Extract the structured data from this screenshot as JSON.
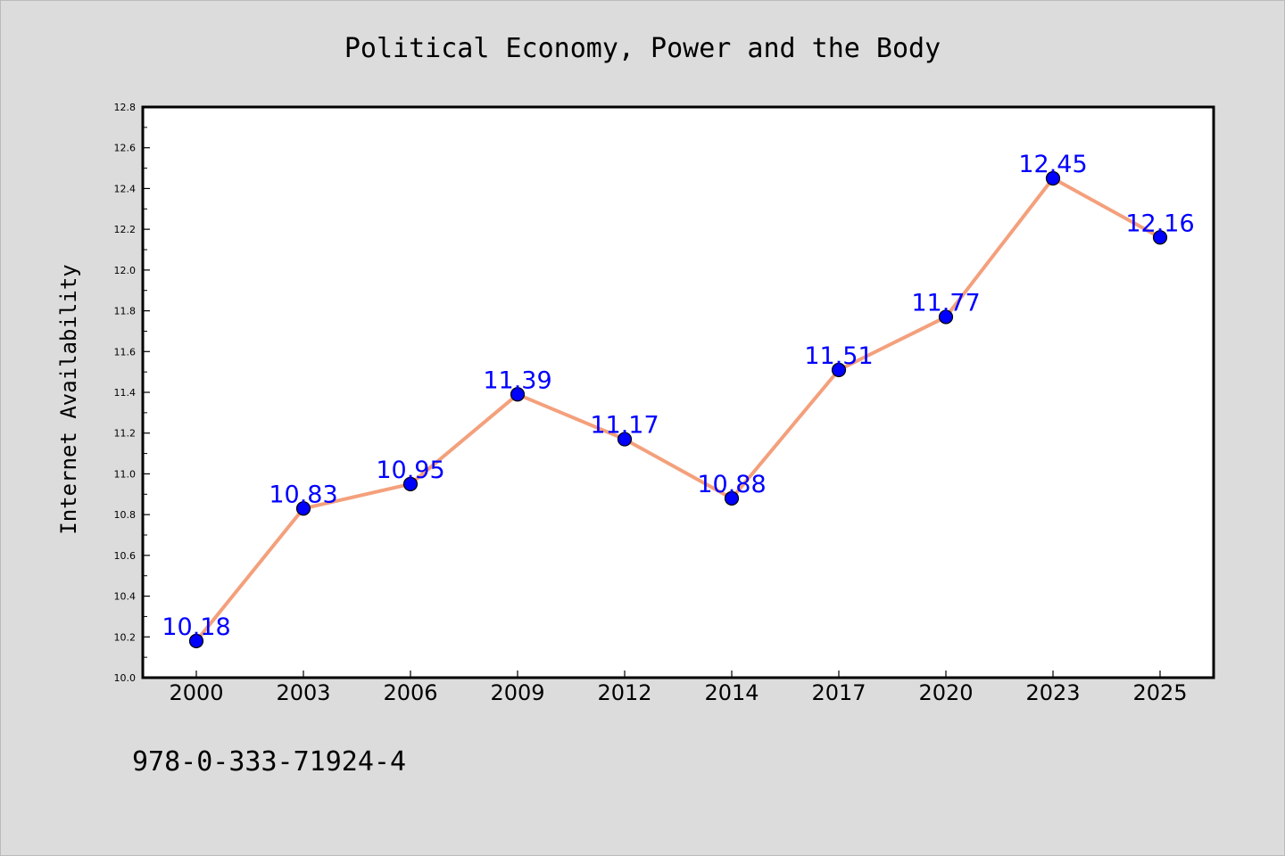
{
  "chart_data": {
    "type": "line",
    "title": "Political Economy, Power and the Body",
    "ylabel": "Internet Availability",
    "xlabel": "",
    "categories": [
      "2000",
      "2003",
      "2006",
      "2009",
      "2012",
      "2014",
      "2017",
      "2020",
      "2023",
      "2025"
    ],
    "series": [
      {
        "values": [
          10.18,
          10.83,
          10.95,
          11.39,
          11.17,
          10.88,
          11.51,
          11.77,
          12.45,
          12.16
        ]
      }
    ],
    "data_labels": [
      "10.18",
      "10.83",
      "10.95",
      "11.39",
      "11.17",
      "10.88",
      "11.51",
      "11.77",
      "12.45",
      "12.16"
    ],
    "ylim": [
      10.0,
      12.8
    ],
    "yticks": [
      "10.0",
      "10.2",
      "10.4",
      "10.6",
      "10.8",
      "11.0",
      "11.2",
      "11.4",
      "11.6",
      "11.8",
      "12.0",
      "12.2",
      "12.4",
      "12.6",
      "12.8"
    ],
    "grid": false,
    "colors": {
      "line": "#f4a07c",
      "marker": "#0000ff",
      "label": "#0000ff",
      "background": "#dcdcdc",
      "plot_area": "#ffffff"
    }
  },
  "footer": {
    "isbn": "978-0-333-71924-4"
  }
}
